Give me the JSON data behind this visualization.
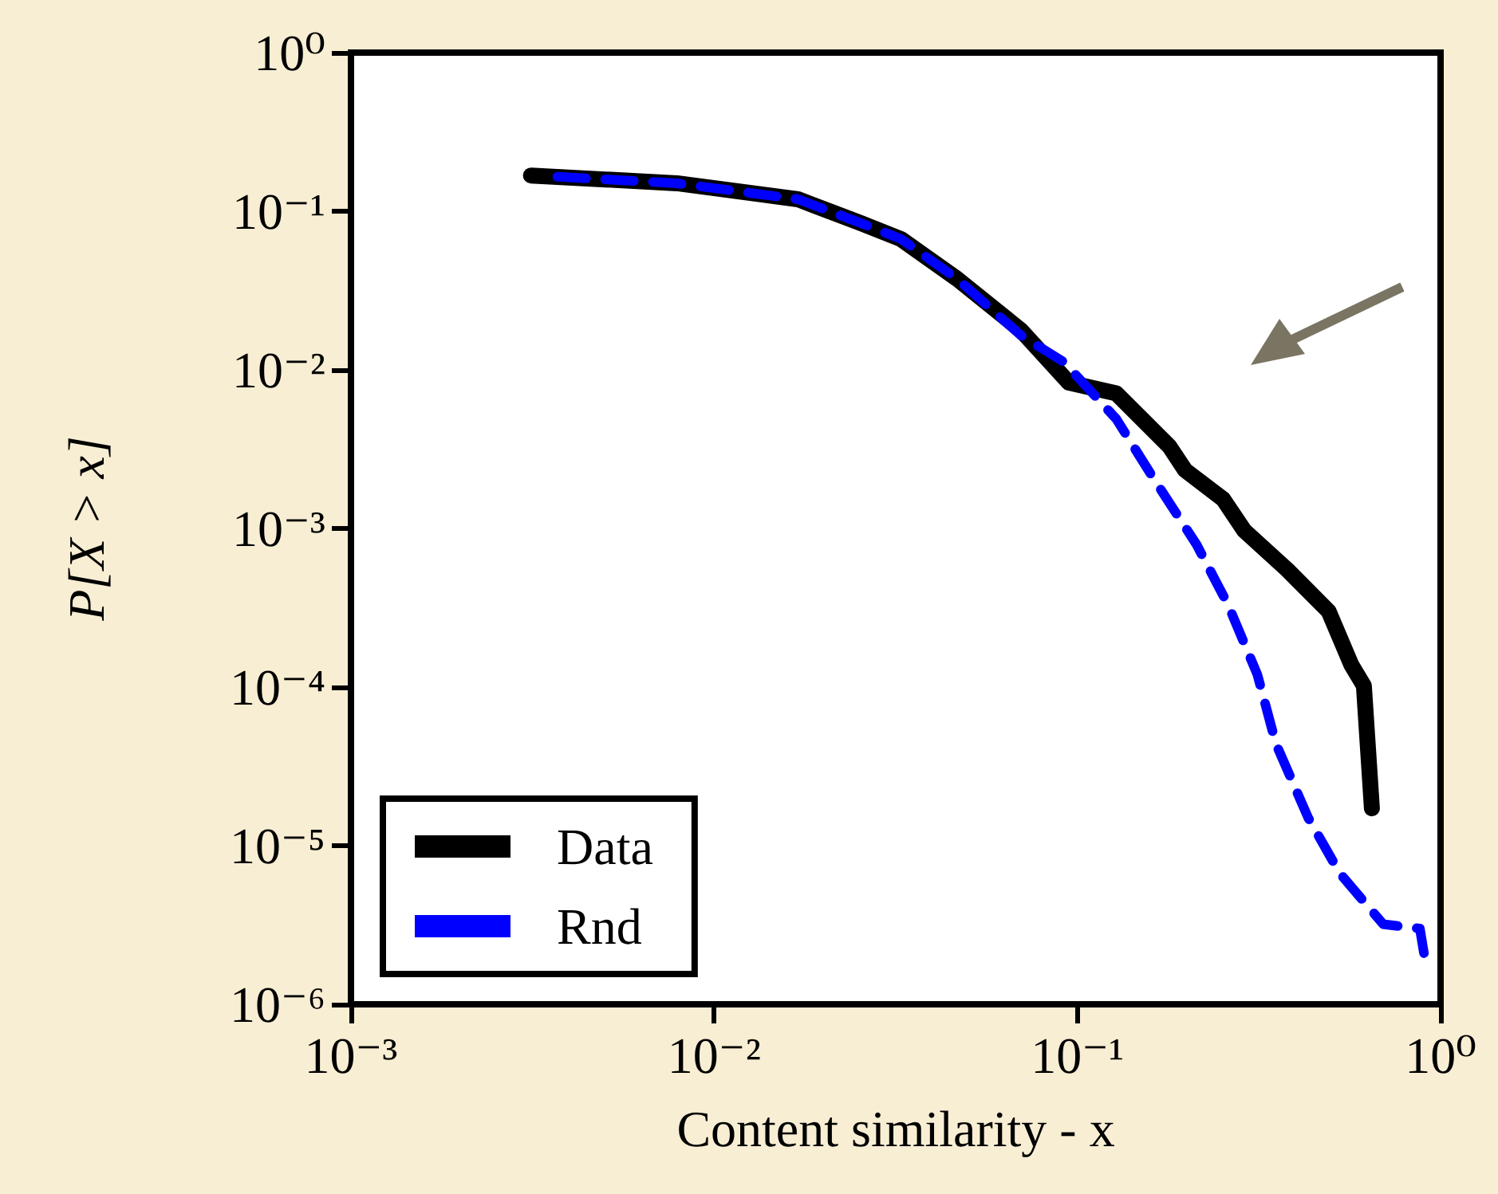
{
  "chart_data": {
    "type": "line",
    "xlabel": "Content similarity - x",
    "ylabel": "P[X > x]",
    "log": "xy",
    "grid": false,
    "legend": "bottom left",
    "marker": "none",
    "xlim": [
      0.001,
      1
    ],
    "ylim": [
      1e-06,
      1
    ],
    "xticks": [
      {
        "value": 0.001,
        "label": "10⁻³"
      },
      {
        "value": 0.01,
        "label": "10⁻²"
      },
      {
        "value": 0.1,
        "label": "10⁻¹"
      },
      {
        "value": 1,
        "label": "10⁰"
      }
    ],
    "yticks": [
      {
        "value": 1e-06,
        "label": "10⁻⁶"
      },
      {
        "value": 1e-05,
        "label": "10⁻⁵"
      },
      {
        "value": 0.0001,
        "label": "10⁻⁴"
      },
      {
        "value": 0.001,
        "label": "10⁻³"
      },
      {
        "value": 0.01,
        "label": "10⁻²"
      },
      {
        "value": 0.1,
        "label": "10⁻¹"
      },
      {
        "value": 1,
        "label": "10⁰"
      }
    ],
    "series": [
      {
        "name": "Data",
        "color": "#000000",
        "line_style": "solid",
        "x": [
          0.00313,
          0.0079,
          0.017,
          0.0254,
          0.0327,
          0.0467,
          0.0699,
          0.0947,
          0.128,
          0.179,
          0.198,
          0.252,
          0.288,
          0.378,
          0.492,
          0.568,
          0.615,
          0.647
        ],
        "values": [
          0.168,
          0.15,
          0.119,
          0.084,
          0.0667,
          0.0374,
          0.0178,
          0.0083,
          0.0071,
          0.0033,
          0.00233,
          0.00153,
          0.00097,
          0.00055,
          0.0003,
          0.000138,
          0.000102,
          1.72e-05
        ]
      },
      {
        "name": "Rnd",
        "color": "#0000ff",
        "line_style": "dashed",
        "x": [
          0.0037,
          0.0079,
          0.017,
          0.0254,
          0.0327,
          0.0467,
          0.0699,
          0.0918,
          0.128,
          0.162,
          0.213,
          0.26,
          0.313,
          0.352,
          0.432,
          0.478,
          0.528,
          0.695,
          0.877,
          0.9
        ],
        "values": [
          0.165,
          0.15,
          0.119,
          0.084,
          0.0667,
          0.0374,
          0.0165,
          0.0112,
          0.0049,
          0.00207,
          0.00079,
          0.00033,
          0.00012,
          4.4e-05,
          1.5e-05,
          1e-05,
          6.7e-06,
          3.2e-06,
          3e-06,
          2.1e-06
        ]
      }
    ]
  }
}
